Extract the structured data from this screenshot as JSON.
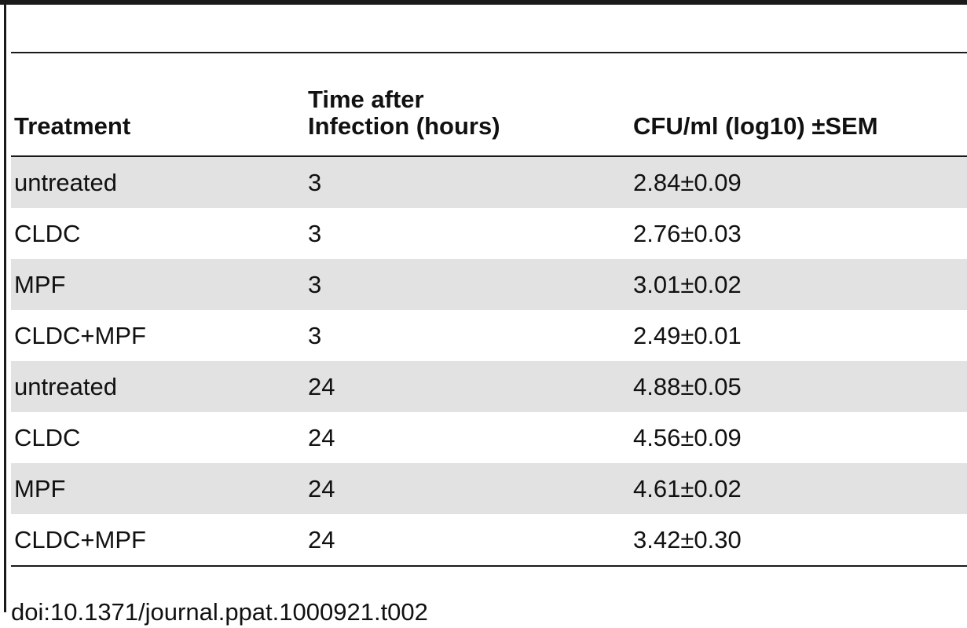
{
  "table": {
    "headers": [
      "Treatment",
      "Time after\nInfection (hours)",
      "CFU/ml (log10) ±SEM"
    ],
    "rows": [
      [
        "untreated",
        "3",
        "2.84±0.09"
      ],
      [
        "CLDC",
        "3",
        "2.76±0.03"
      ],
      [
        "MPF",
        "3",
        "3.01±0.02"
      ],
      [
        "CLDC+MPF",
        "3",
        "2.49±0.01"
      ],
      [
        "untreated",
        "24",
        "4.88±0.05"
      ],
      [
        "CLDC",
        "24",
        "4.56±0.09"
      ],
      [
        "MPF",
        "24",
        "4.61±0.02"
      ],
      [
        "CLDC+MPF",
        "24",
        "3.42±0.30"
      ]
    ]
  },
  "doi": "doi:10.1371/journal.ppat.1000921.t002"
}
